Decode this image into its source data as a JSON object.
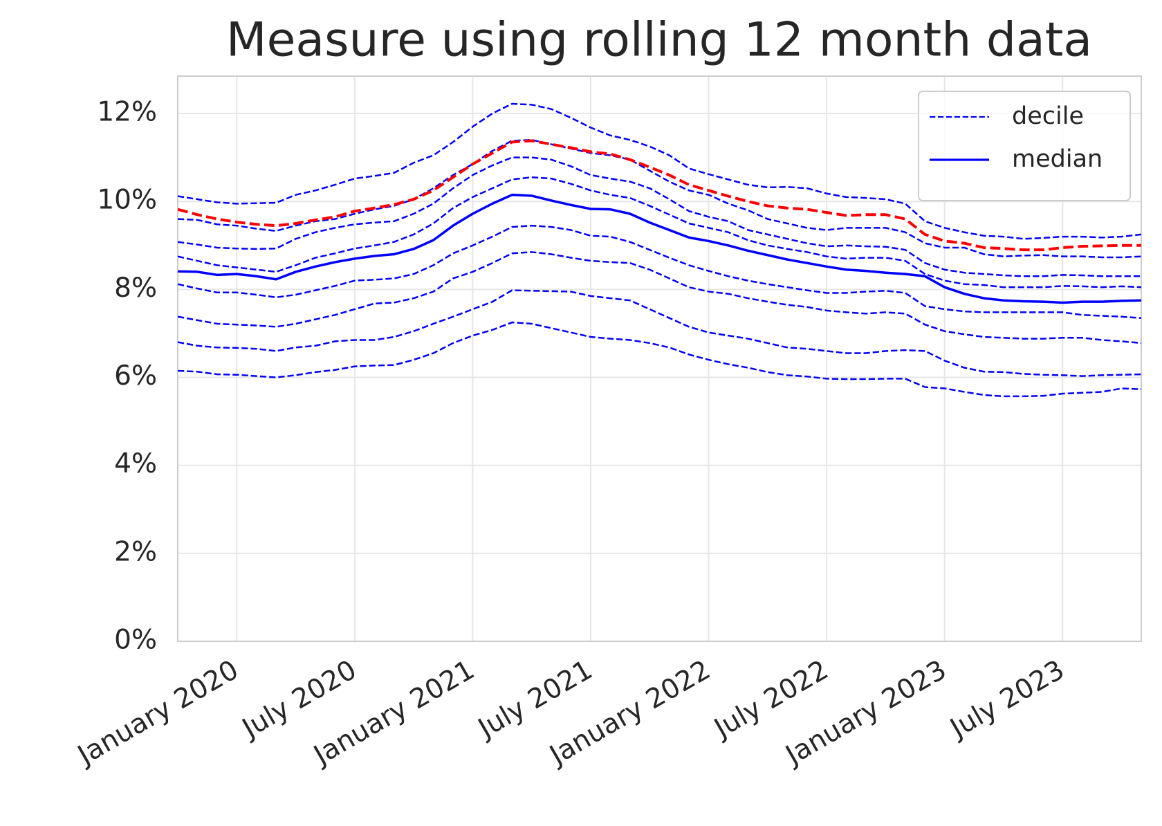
{
  "chart_data": {
    "type": "line",
    "title": "Measure using rolling 12 month data",
    "x": [
      "2019-10",
      "2019-11",
      "2019-12",
      "2020-01",
      "2020-02",
      "2020-03",
      "2020-04",
      "2020-05",
      "2020-06",
      "2020-07",
      "2020-08",
      "2020-09",
      "2020-10",
      "2020-11",
      "2020-12",
      "2021-01",
      "2021-02",
      "2021-03",
      "2021-04",
      "2021-05",
      "2021-06",
      "2021-07",
      "2021-08",
      "2021-09",
      "2021-10",
      "2021-11",
      "2021-12",
      "2022-01",
      "2022-02",
      "2022-03",
      "2022-04",
      "2022-05",
      "2022-06",
      "2022-07",
      "2022-08",
      "2022-09",
      "2022-10",
      "2022-11",
      "2022-12",
      "2023-01",
      "2023-02",
      "2023-03",
      "2023-04",
      "2023-05",
      "2023-06",
      "2023-07",
      "2023-08",
      "2023-09",
      "2023-10",
      "2023-11"
    ],
    "xlim": [
      "2019-10",
      "2023-11"
    ],
    "xticks": [
      {
        "value": "2020-01",
        "label": "January 2020"
      },
      {
        "value": "2020-07",
        "label": "July 2020"
      },
      {
        "value": "2021-01",
        "label": "January 2021"
      },
      {
        "value": "2021-07",
        "label": "July 2021"
      },
      {
        "value": "2022-01",
        "label": "January 2022"
      },
      {
        "value": "2022-07",
        "label": "July 2022"
      },
      {
        "value": "2023-01",
        "label": "January 2023"
      },
      {
        "value": "2023-07",
        "label": "July 2023"
      }
    ],
    "ylim": [
      0,
      12.85
    ],
    "yticks": [
      {
        "value": 0,
        "label": "0%"
      },
      {
        "value": 2,
        "label": "2%"
      },
      {
        "value": 4,
        "label": "4%"
      },
      {
        "value": 6,
        "label": "6%"
      },
      {
        "value": 8,
        "label": "8%"
      },
      {
        "value": 10,
        "label": "10%"
      },
      {
        "value": 12,
        "label": "12%"
      }
    ],
    "grid": true,
    "legend": "upper right",
    "series": [
      {
        "name": "decile",
        "color": "#0000ff",
        "linestyle": "dashed",
        "linewidth": 2.5,
        "values": [
          6.15,
          6.13,
          6.07,
          6.06,
          6.03,
          6.0,
          6.05,
          6.12,
          6.17,
          6.25,
          6.27,
          6.28,
          6.4,
          6.55,
          6.78,
          6.95,
          7.08,
          7.25,
          7.22,
          7.12,
          7.02,
          6.92,
          6.88,
          6.85,
          6.78,
          6.68,
          6.52,
          6.4,
          6.3,
          6.22,
          6.12,
          6.05,
          6.02,
          5.97,
          5.96,
          5.96,
          5.97,
          5.97,
          5.78,
          5.75,
          5.67,
          5.6,
          5.57,
          5.57,
          5.58,
          5.63,
          5.65,
          5.67,
          5.75,
          5.73
        ]
      },
      {
        "name": "decile",
        "color": "#0000ff",
        "linestyle": "dashed",
        "linewidth": 2.5,
        "values": [
          6.8,
          6.72,
          6.68,
          6.67,
          6.65,
          6.6,
          6.68,
          6.72,
          6.82,
          6.85,
          6.85,
          6.92,
          7.05,
          7.22,
          7.38,
          7.55,
          7.72,
          7.98,
          7.97,
          7.96,
          7.95,
          7.85,
          7.8,
          7.75,
          7.55,
          7.35,
          7.15,
          7.02,
          6.95,
          6.88,
          6.78,
          6.68,
          6.65,
          6.6,
          6.55,
          6.55,
          6.6,
          6.62,
          6.6,
          6.38,
          6.22,
          6.13,
          6.12,
          6.08,
          6.06,
          6.05,
          6.03,
          6.05,
          6.06,
          6.07
        ]
      },
      {
        "name": "decile",
        "color": "#0000ff",
        "linestyle": "dashed",
        "linewidth": 2.5,
        "values": [
          7.38,
          7.3,
          7.22,
          7.2,
          7.18,
          7.15,
          7.22,
          7.32,
          7.42,
          7.55,
          7.68,
          7.7,
          7.8,
          7.95,
          8.25,
          8.4,
          8.6,
          8.82,
          8.85,
          8.8,
          8.72,
          8.65,
          8.62,
          8.6,
          8.45,
          8.25,
          8.05,
          7.95,
          7.9,
          7.8,
          7.72,
          7.65,
          7.6,
          7.52,
          7.48,
          7.45,
          7.48,
          7.45,
          7.2,
          7.05,
          6.98,
          6.92,
          6.9,
          6.88,
          6.88,
          6.9,
          6.9,
          6.85,
          6.82,
          6.78
        ]
      },
      {
        "name": "decile",
        "color": "#0000ff",
        "linestyle": "dashed",
        "linewidth": 2.5,
        "values": [
          8.12,
          8.02,
          7.93,
          7.93,
          7.88,
          7.82,
          7.88,
          7.98,
          8.08,
          8.2,
          8.22,
          8.25,
          8.35,
          8.55,
          8.82,
          9.0,
          9.2,
          9.42,
          9.45,
          9.42,
          9.35,
          9.22,
          9.2,
          9.08,
          8.9,
          8.72,
          8.55,
          8.42,
          8.3,
          8.2,
          8.12,
          8.05,
          7.98,
          7.92,
          7.92,
          7.95,
          7.97,
          7.92,
          7.62,
          7.55,
          7.5,
          7.48,
          7.48,
          7.48,
          7.48,
          7.48,
          7.42,
          7.4,
          7.38,
          7.35
        ]
      },
      {
        "name": "median",
        "color": "#0000ff",
        "linestyle": "solid",
        "linewidth": 3.5,
        "values": [
          8.41,
          8.4,
          8.33,
          8.35,
          8.3,
          8.23,
          8.4,
          8.52,
          8.62,
          8.7,
          8.76,
          8.8,
          8.92,
          9.12,
          9.45,
          9.72,
          9.95,
          10.15,
          10.13,
          10.02,
          9.92,
          9.83,
          9.82,
          9.72,
          9.52,
          9.35,
          9.18,
          9.1,
          9.0,
          8.88,
          8.78,
          8.68,
          8.6,
          8.52,
          8.45,
          8.42,
          8.38,
          8.35,
          8.3,
          8.05,
          7.9,
          7.8,
          7.75,
          7.73,
          7.72,
          7.7,
          7.72,
          7.72,
          7.74,
          7.75
        ]
      },
      {
        "name": "decile",
        "color": "#0000ff",
        "linestyle": "dashed",
        "linewidth": 2.5,
        "values": [
          8.75,
          8.65,
          8.55,
          8.5,
          8.45,
          8.4,
          8.55,
          8.72,
          8.82,
          8.93,
          9.0,
          9.08,
          9.25,
          9.5,
          9.85,
          10.1,
          10.3,
          10.5,
          10.55,
          10.52,
          10.4,
          10.25,
          10.15,
          10.08,
          9.9,
          9.7,
          9.5,
          9.4,
          9.3,
          9.12,
          9.0,
          8.92,
          8.85,
          8.75,
          8.7,
          8.72,
          8.72,
          8.65,
          8.35,
          8.2,
          8.12,
          8.1,
          8.05,
          8.05,
          8.05,
          8.08,
          8.07,
          8.05,
          8.07,
          8.05
        ]
      },
      {
        "name": "decile",
        "color": "#0000ff",
        "linestyle": "dashed",
        "linewidth": 2.5,
        "values": [
          9.08,
          9.02,
          8.95,
          8.93,
          8.92,
          8.93,
          9.15,
          9.3,
          9.4,
          9.48,
          9.52,
          9.55,
          9.72,
          9.95,
          10.3,
          10.6,
          10.82,
          11.0,
          11.0,
          10.95,
          10.8,
          10.6,
          10.52,
          10.45,
          10.3,
          10.05,
          9.78,
          9.65,
          9.55,
          9.35,
          9.25,
          9.15,
          9.05,
          8.98,
          9.0,
          8.98,
          8.97,
          8.9,
          8.6,
          8.45,
          8.38,
          8.35,
          8.32,
          8.3,
          8.3,
          8.33,
          8.32,
          8.3,
          8.3,
          8.3
        ]
      },
      {
        "name": "decile",
        "color": "#0000ff",
        "linestyle": "dashed",
        "linewidth": 2.5,
        "values": [
          9.6,
          9.58,
          9.48,
          9.45,
          9.38,
          9.33,
          9.45,
          9.55,
          9.6,
          9.72,
          9.82,
          9.9,
          10.05,
          10.3,
          10.6,
          10.85,
          11.15,
          11.38,
          11.4,
          11.3,
          11.2,
          11.1,
          11.05,
          10.95,
          10.7,
          10.45,
          10.25,
          10.15,
          9.95,
          9.8,
          9.6,
          9.5,
          9.4,
          9.35,
          9.4,
          9.4,
          9.4,
          9.3,
          9.05,
          8.95,
          8.95,
          8.8,
          8.75,
          8.77,
          8.78,
          8.75,
          8.75,
          8.73,
          8.73,
          8.75
        ]
      },
      {
        "name": "decile",
        "color": "#0000ff",
        "linestyle": "dashed",
        "linewidth": 2.5,
        "values": [
          10.12,
          10.05,
          9.98,
          9.95,
          9.96,
          9.97,
          10.15,
          10.25,
          10.38,
          10.52,
          10.58,
          10.65,
          10.88,
          11.05,
          11.35,
          11.7,
          12.0,
          12.22,
          12.2,
          12.1,
          11.9,
          11.68,
          11.5,
          11.4,
          11.25,
          11.05,
          10.75,
          10.62,
          10.5,
          10.38,
          10.32,
          10.33,
          10.3,
          10.18,
          10.1,
          10.08,
          10.05,
          9.95,
          9.55,
          9.4,
          9.3,
          9.22,
          9.2,
          9.15,
          9.17,
          9.2,
          9.2,
          9.18,
          9.2,
          9.25
        ]
      },
      {
        "color": "#ff0000",
        "linestyle": "dashed",
        "linewidth": 4,
        "values": [
          9.82,
          9.7,
          9.6,
          9.53,
          9.48,
          9.45,
          9.5,
          9.58,
          9.65,
          9.78,
          9.85,
          9.93,
          10.05,
          10.25,
          10.55,
          10.85,
          11.1,
          11.35,
          11.38,
          11.3,
          11.22,
          11.13,
          11.08,
          10.95,
          10.78,
          10.6,
          10.38,
          10.25,
          10.12,
          10.0,
          9.9,
          9.85,
          9.82,
          9.75,
          9.68,
          9.7,
          9.7,
          9.6,
          9.25,
          9.1,
          9.05,
          8.95,
          8.93,
          8.9,
          8.9,
          8.95,
          8.98,
          8.99,
          9.0,
          9.0
        ]
      }
    ]
  }
}
